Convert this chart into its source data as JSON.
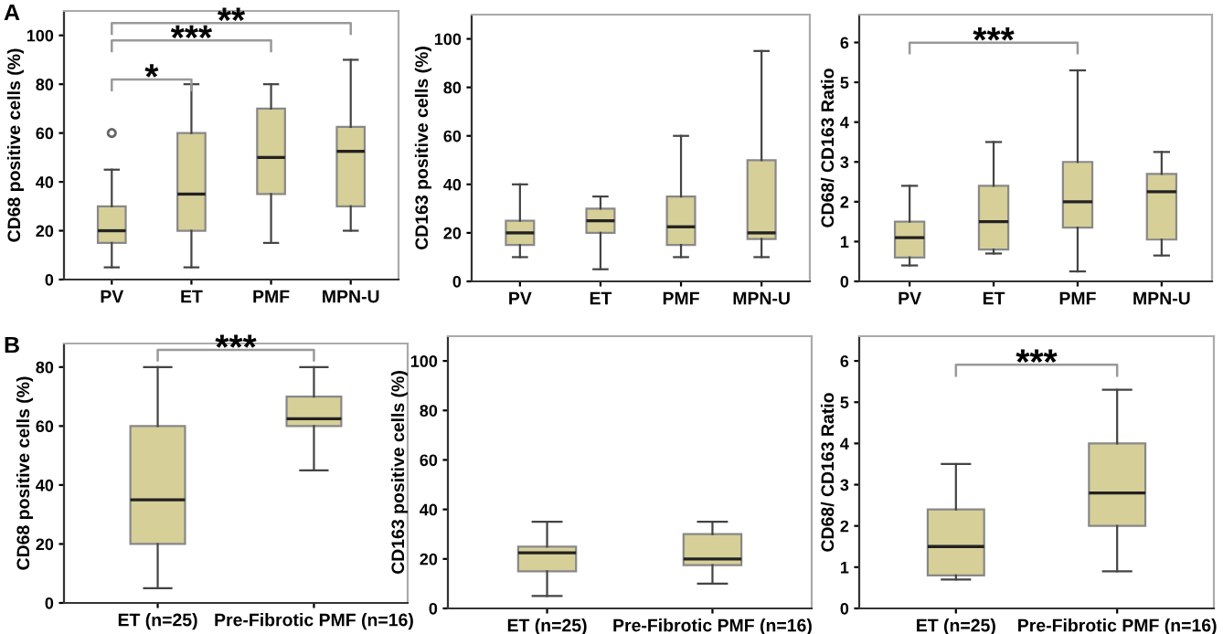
{
  "chart_data": [
    {
      "type": "box",
      "ylabel": "CD68 positive cells (%)",
      "categories": [
        "PV",
        "ET",
        "PMF",
        "MPN-U"
      ],
      "color": "#d6cf98",
      "ylim": [
        0,
        110
      ],
      "yticks": [
        0,
        20,
        40,
        60,
        80,
        100
      ],
      "grid": false,
      "boxes": [
        {
          "low": 5,
          "q1": 15,
          "median": 20,
          "q3": 30,
          "high": 45,
          "outliers": [
            60
          ]
        },
        {
          "low": 5,
          "q1": 20,
          "median": 35,
          "q3": 60,
          "high": 80
        },
        {
          "low": 15,
          "q1": 35,
          "median": 50,
          "q3": 70,
          "high": 80
        },
        {
          "low": 20,
          "q1": 30,
          "median": 52.5,
          "q3": 62.5,
          "high": 90
        }
      ],
      "annotations": [
        "A",
        "*",
        "***",
        "**"
      ]
    },
    {
      "type": "box",
      "ylabel": "CD163 positive cells (%)",
      "categories": [
        "PV",
        "ET",
        "PMF",
        "MPN-U"
      ],
      "color": "#d6cf98",
      "ylim": [
        0,
        110
      ],
      "yticks": [
        0,
        20,
        40,
        60,
        80,
        100
      ],
      "grid": false,
      "boxes": [
        {
          "low": 10,
          "q1": 15,
          "median": 20,
          "q3": 25,
          "high": 40
        },
        {
          "low": 5,
          "q1": 20,
          "median": 25,
          "q3": 30,
          "high": 35
        },
        {
          "low": 10,
          "q1": 15,
          "median": 22.5,
          "q3": 35,
          "high": 60
        },
        {
          "low": 10,
          "q1": 17.5,
          "median": 20,
          "q3": 50,
          "high": 95
        }
      ]
    },
    {
      "type": "box",
      "ylabel": "CD68/ CD163 Ratio",
      "categories": [
        "PV",
        "ET",
        "PMF",
        "MPN-U"
      ],
      "color": "#d6cf98",
      "ylim": [
        0,
        6.7
      ],
      "yticks": [
        0,
        1,
        2,
        3,
        4,
        5,
        6
      ],
      "grid": false,
      "boxes": [
        {
          "low": 0.4,
          "q1": 0.6,
          "median": 1.1,
          "q3": 1.5,
          "high": 2.4
        },
        {
          "low": 0.7,
          "q1": 0.8,
          "median": 1.5,
          "q3": 2.4,
          "high": 3.5
        },
        {
          "low": 0.25,
          "q1": 1.35,
          "median": 2,
          "q3": 3,
          "high": 5.3
        },
        {
          "low": 0.65,
          "q1": 1.05,
          "median": 2.25,
          "q3": 2.7,
          "high": 3.25
        }
      ],
      "annotations": [
        "***"
      ]
    },
    {
      "type": "box",
      "ylabel": "CD68 positive cells (%)",
      "categories": [
        "ET (n=25)",
        "Pre-Fibrotic PMF (n=16)"
      ],
      "color": "#d6cf98",
      "ylim": [
        0,
        88
      ],
      "yticks": [
        0,
        20,
        40,
        60,
        80
      ],
      "grid": false,
      "boxes": [
        {
          "low": 5,
          "q1": 20,
          "median": 35,
          "q3": 60,
          "high": 80
        },
        {
          "low": 45,
          "q1": 60,
          "median": 62.5,
          "q3": 70,
          "high": 80
        }
      ],
      "annotations": [
        "B",
        "***"
      ]
    },
    {
      "type": "box",
      "ylabel": "CD163 positive cells (%)",
      "categories": [
        "ET (n=25)",
        "Pre-Fibrotic PMF (n=16)"
      ],
      "color": "#d6cf98",
      "ylim": [
        0,
        110
      ],
      "yticks": [
        0,
        20,
        40,
        60,
        80,
        100
      ],
      "grid": false,
      "boxes": [
        {
          "low": 5,
          "q1": 15,
          "median": 22.5,
          "q3": 25,
          "high": 35
        },
        {
          "low": 10,
          "q1": 17.5,
          "median": 20,
          "q3": 30,
          "high": 35
        }
      ]
    },
    {
      "type": "box",
      "ylabel": "CD68/ CD163 Ratio",
      "categories": [
        "ET (n=25)",
        "Pre-Fibrotic PMF (n=16)"
      ],
      "color": "#d6cf98",
      "ylim": [
        0,
        6.6
      ],
      "yticks": [
        0,
        1,
        2,
        3,
        4,
        5,
        6
      ],
      "grid": false,
      "boxes": [
        {
          "low": 0.7,
          "q1": 0.8,
          "median": 1.5,
          "q3": 2.4,
          "high": 3.5
        },
        {
          "low": 0.9,
          "q1": 2,
          "median": 2.8,
          "q3": 4,
          "high": 5.3
        }
      ],
      "annotations": [
        "***"
      ]
    }
  ]
}
